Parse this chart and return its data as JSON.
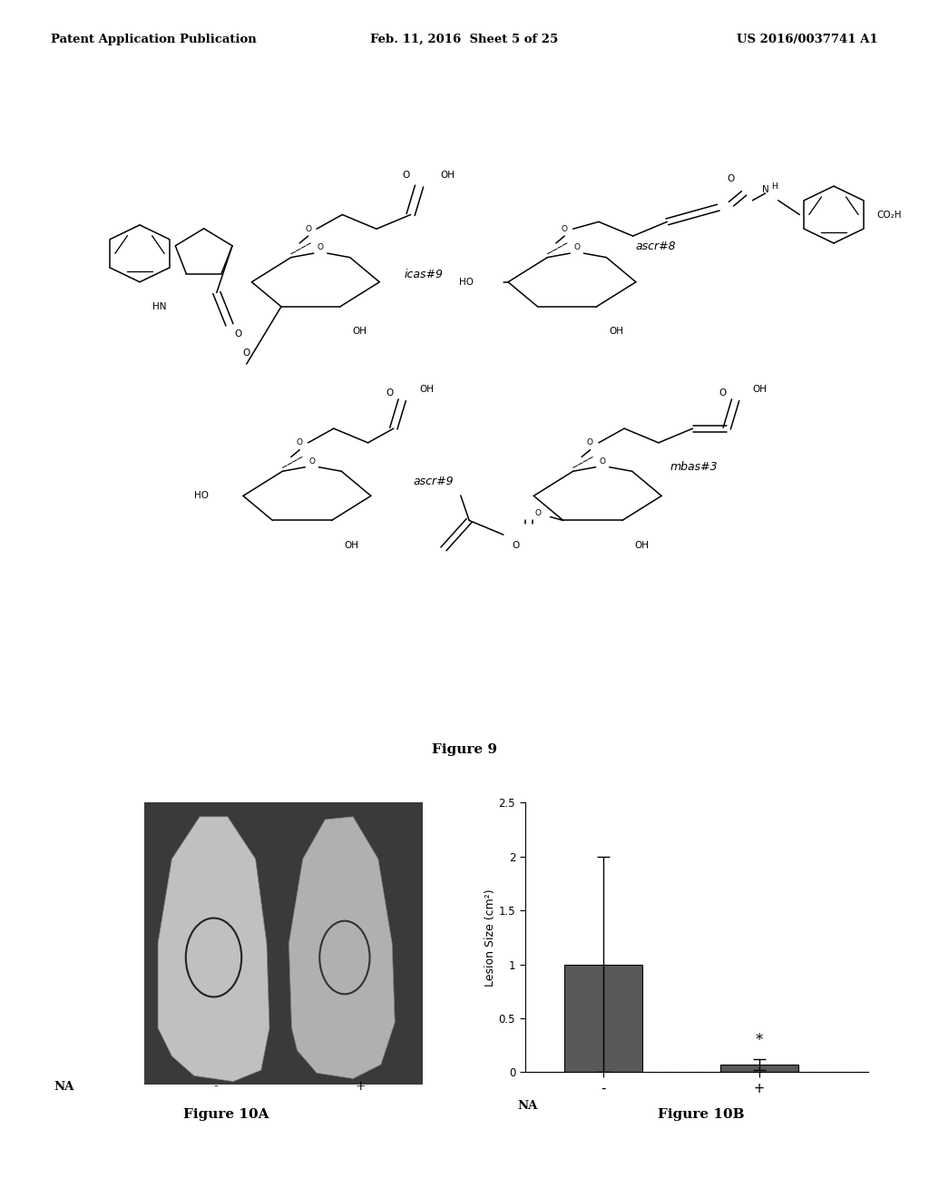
{
  "header_left": "Patent Application Publication",
  "header_mid": "Feb. 11, 2016  Sheet 5 of 25",
  "header_right": "US 2016/0037741 A1",
  "fig9_caption": "Figure 9",
  "fig10a_caption": "Figure 10A",
  "fig10b_caption": "Figure 10B",
  "fig10b_ylabel": "Lesion Size (cm²)",
  "fig10b_categories": [
    "-",
    "+"
  ],
  "fig10b_values": [
    1.0,
    0.07
  ],
  "fig10b_errors_upper": [
    1.0,
    0.05
  ],
  "fig10b_errors_lower": [
    1.0,
    0.05
  ],
  "fig10b_ylim": [
    0,
    2.5
  ],
  "fig10b_yticks": [
    0,
    0.5,
    1.0,
    1.5,
    2.0,
    2.5
  ],
  "fig10b_bar_color": "#595959",
  "fig10b_star_label": "*",
  "fig10a_na_label": "NA",
  "fig10a_minus_label": "-",
  "fig10a_plus_label": "+",
  "background_color": "#ffffff",
  "text_color": "#000000",
  "header_fontsize": 9.5,
  "caption_fontsize": 11,
  "chem_lw": 1.1
}
